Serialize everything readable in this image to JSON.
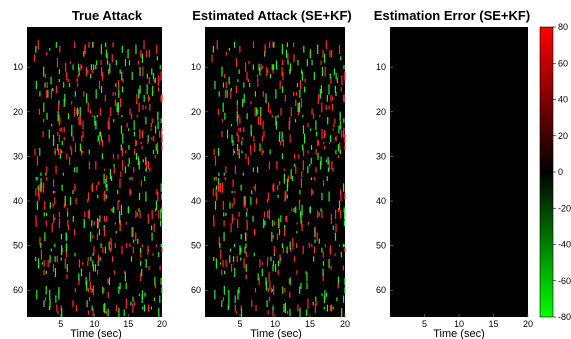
{
  "chart_data": [
    {
      "type": "heatmap",
      "title": "True Attack",
      "xlabel": "Time (sec)",
      "ylabel": "",
      "xlim": [
        0,
        20
      ],
      "ylim": [
        1,
        66
      ],
      "xticks": [
        5,
        10,
        15,
        20
      ],
      "yticks": [
        10,
        20,
        30,
        40,
        50,
        60
      ],
      "y_direction": "top-down",
      "background_value": 0,
      "description_of_marks": "sparse short vertical streaks, red = positive, green = negative attack values"
    },
    {
      "type": "heatmap",
      "title": "Estimated Attack (SE+KF)",
      "xlabel": "Time (sec)",
      "ylabel": "",
      "xlim": [
        0,
        20
      ],
      "ylim": [
        1,
        66
      ],
      "xticks": [
        5,
        10,
        15,
        20
      ],
      "yticks": [
        10,
        20,
        30,
        40,
        50,
        60
      ],
      "y_direction": "top-down",
      "background_value": 0
    },
    {
      "type": "heatmap",
      "title": "Estimation Error (SE+KF)",
      "xlabel": "Time (sec)",
      "ylabel": "",
      "xlim": [
        0,
        20
      ],
      "ylim": [
        1,
        66
      ],
      "xticks": [
        5,
        10,
        15,
        20
      ],
      "yticks": [
        10,
        20,
        30,
        40,
        50,
        60
      ],
      "y_direction": "top-down",
      "uniform_value": 0
    }
  ],
  "colorbar": {
    "range": [
      -80,
      80
    ],
    "ticks": [
      80,
      60,
      40,
      20,
      0,
      -20,
      -40,
      -60,
      -80
    ],
    "colors": {
      "max": "#ff0000",
      "mid": "#000000",
      "min": "#00ff00"
    }
  },
  "colors": {
    "positive": "#ff2a2a",
    "negative": "#2eea2e",
    "background": "#000000"
  }
}
